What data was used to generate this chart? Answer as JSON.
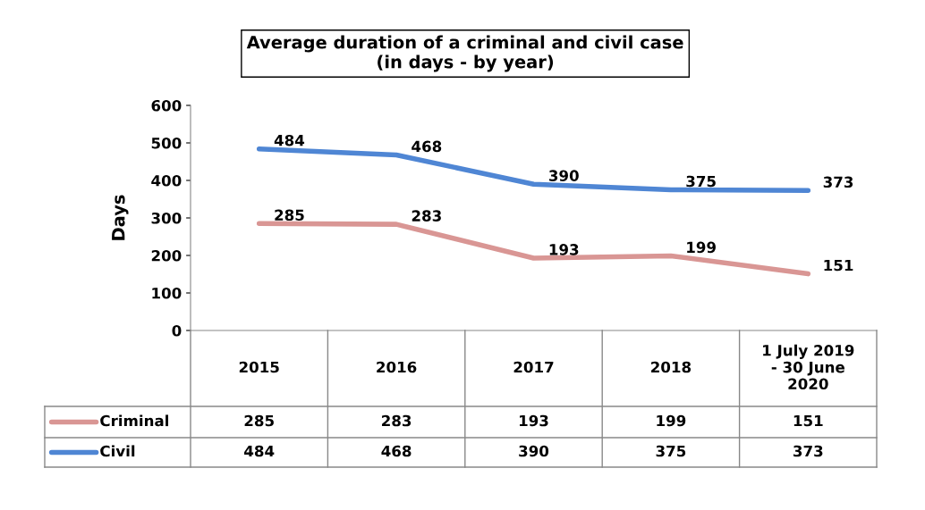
{
  "chart_data": {
    "type": "line",
    "title": "Average duration of a criminal and civil case\n(in days - by year)",
    "ylabel": "Days",
    "categories": [
      "2015",
      "2016",
      "2017",
      "2018",
      "1 July 2019\n- 30 June\n2020"
    ],
    "series": [
      {
        "name": "Criminal",
        "color": "#d99694",
        "values": [
          285,
          283,
          193,
          199,
          151
        ]
      },
      {
        "name": "Civil",
        "color": "#4f86d4",
        "values": [
          484,
          468,
          390,
          375,
          373
        ]
      }
    ],
    "annotations": [
      {
        "text": "285",
        "x": "2015",
        "y": 285
      },
      {
        "text": "283",
        "x": "2016",
        "y": 283
      },
      {
        "text": "193",
        "x": "2017",
        "y": 193
      },
      {
        "text": "199",
        "x": "2018",
        "y": 199
      },
      {
        "text": "151",
        "x": "1 July 2019\n- 30 June\n2020",
        "y": 151
      },
      {
        "text": "484",
        "x": "2015",
        "y": 484
      },
      {
        "text": "468",
        "x": "2016",
        "y": 468
      },
      {
        "text": "390",
        "x": "2017",
        "y": 390
      },
      {
        "text": "375",
        "x": "2018",
        "y": 375
      },
      {
        "text": "373",
        "x": "1 July 2019\n- 30 June\n2020",
        "y": 373
      }
    ],
    "ylim": [
      0,
      600
    ],
    "yticks": [
      0,
      100,
      200,
      300,
      400,
      500,
      600
    ],
    "grid": false,
    "data_labels": true,
    "legend": "bottom",
    "marker": "none",
    "line_style": "solid"
  }
}
